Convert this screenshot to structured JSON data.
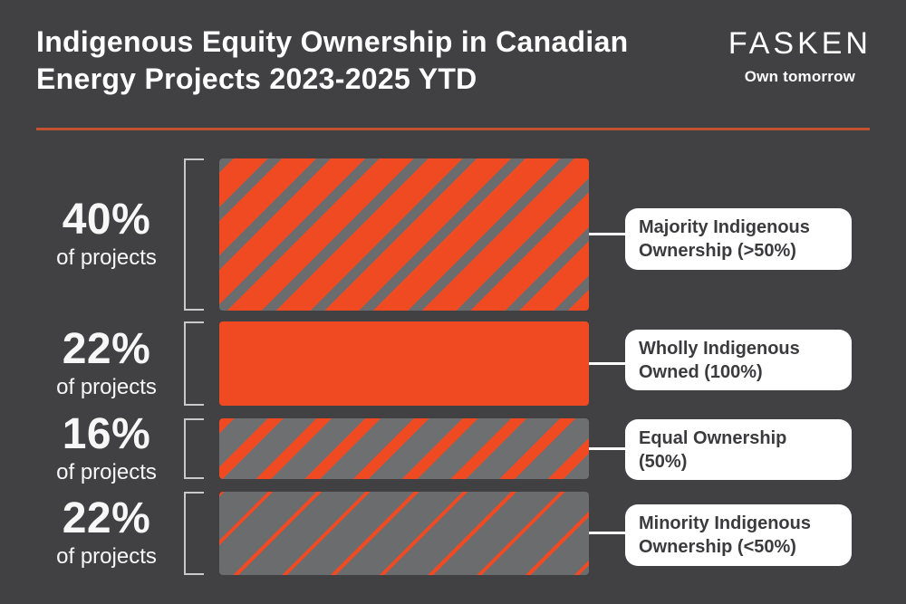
{
  "header": {
    "title_line1": "Indigenous Equity Ownership in Canadian",
    "title_line2": "Energy Projects 2023-2025 YTD",
    "logo_name": "FASKEN",
    "logo_tagline": "Own tomorrow"
  },
  "colors": {
    "background": "#414042",
    "accent_orange": "#F04A23",
    "stripe_gray": "#6B6C6E",
    "divider_orange": "#C1512F",
    "callout_background": "#FFFFFF",
    "callout_text": "#3B3B3D",
    "bracket_gray": "#C9C9C9",
    "text_white": "#FFFFFF"
  },
  "chart_data": {
    "type": "bar",
    "orientation": "horizontal-rows",
    "title": "Indigenous Equity Ownership in Canadian Energy Projects 2023-2025 YTD",
    "value_unit": "% of projects",
    "categories": [
      "Majority Indigenous Ownership (>50%)",
      "Wholly Indigenous Owned (100%)",
      "Equal Ownership (50%)",
      "Minority Indigenous Ownership (<50%)"
    ],
    "values": [
      40,
      22,
      16,
      22
    ],
    "bar_patterns": [
      "orange-with-gray-diagonal-stripes",
      "solid-orange",
      "gray-with-orange-diagonal-stripes",
      "gray-with-thin-orange-diagonal-lines"
    ],
    "layout_hint": "bar thickness proportional to percentage; equal bar lengths; labels in white rounded callouts on right",
    "grid": false,
    "legend": false
  },
  "rows": [
    {
      "pct": "40%",
      "sub": "of projects",
      "label_line1": "Majority Indigenous",
      "label_line2": "Ownership (>50%)"
    },
    {
      "pct": "22%",
      "sub": "of projects",
      "label_line1": "Wholly Indigenous",
      "label_line2": "Owned (100%)"
    },
    {
      "pct": "16%",
      "sub": "of projects",
      "label_line1": "Equal Ownership",
      "label_line2": "(50%)"
    },
    {
      "pct": "22%",
      "sub": "of projects",
      "label_line1": "Minority Indigenous",
      "label_line2": "Ownership (<50%)"
    }
  ]
}
